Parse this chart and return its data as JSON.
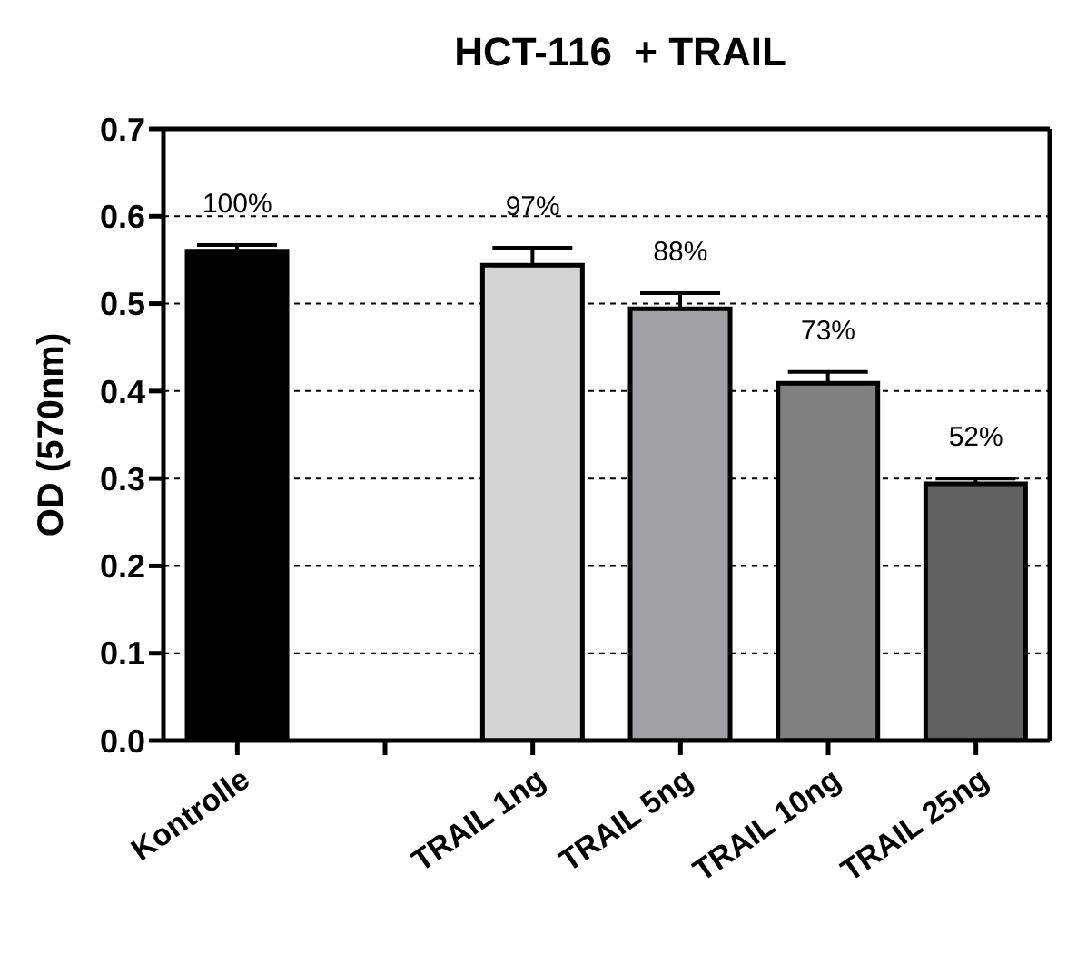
{
  "chart_data": {
    "type": "bar",
    "title": "HCT-116  + TRAIL",
    "ylabel": "OD (570nm)",
    "categories": [
      "Kontrolle",
      null,
      "TRAIL 1ng",
      "TRAIL 5ng",
      "TRAIL 10ng",
      "TRAIL 25ng"
    ],
    "values": [
      0.56,
      null,
      0.544,
      0.494,
      0.409,
      0.294
    ],
    "errors": [
      0.007,
      null,
      0.02,
      0.018,
      0.013,
      0.006
    ],
    "annotations": [
      {
        "text": "100%",
        "x": "Kontrolle",
        "y": 0.567
      },
      {
        "text": "97%",
        "x": "TRAIL 1ng",
        "y": 0.564
      },
      {
        "text": "88%",
        "x": "TRAIL 5ng",
        "y": 0.512
      },
      {
        "text": "73%",
        "x": "TRAIL 10ng",
        "y": 0.422
      },
      {
        "text": "52%",
        "x": "TRAIL 25ng",
        "y": 0.3
      }
    ],
    "colors": [
      "#000000",
      "#ffffff",
      "#d4d4d4",
      "#a0a0a4",
      "#808080",
      "#606060"
    ],
    "ylim": [
      0,
      0.7
    ],
    "yticks": [
      {
        "value": 0,
        "label": "0.0"
      },
      0.1,
      0.2,
      0.3,
      0.4,
      0.5,
      0.6,
      0.7
    ],
    "grid": "y"
  }
}
